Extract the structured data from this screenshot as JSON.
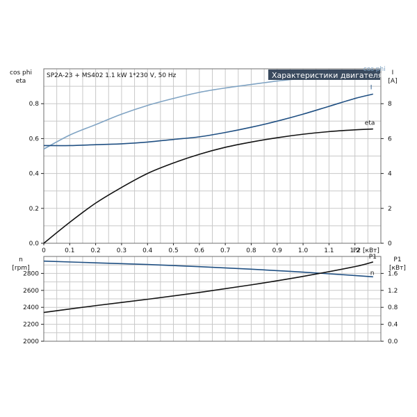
{
  "header": {
    "model_label": "SP2A-23 + MS402   1.1 kW   1*230 V, 50 Hz",
    "title": "Характеристики двигателя"
  },
  "colors": {
    "cos_phi": "#7fa3c3",
    "current": "#1f4f82",
    "eta": "#111111",
    "speed": "#1f4f82",
    "power": "#111111",
    "title_bg": "#3a4a5e"
  },
  "chart_data": [
    {
      "type": "line",
      "xlabel": "P2 [кВт]",
      "xlim": [
        0,
        1.3
      ],
      "x_ticks": [
        "0",
        "0.1",
        "0.2",
        "0.3",
        "0.4",
        "0.5",
        "0.6",
        "0.7",
        "0.8",
        "0.9",
        "1.0",
        "1.1",
        "1.2"
      ],
      "ylabel_left": [
        "cos phi",
        "eta"
      ],
      "ylim_left": [
        0,
        1.0
      ],
      "y_ticks_left": [
        "0.0",
        "0.2",
        "0.4",
        "0.6",
        "0.8"
      ],
      "ylabel_right": [
        "I",
        "[A]"
      ],
      "ylim_right": [
        0,
        10
      ],
      "y_ticks_right": [
        "0",
        "2",
        "4",
        "6",
        "8"
      ],
      "grid": true,
      "series": [
        {
          "name": "cos phi",
          "axis": "left",
          "x": [
            0,
            0.1,
            0.2,
            0.3,
            0.4,
            0.5,
            0.6,
            0.7,
            0.8,
            0.9,
            1.0,
            1.1,
            1.2,
            1.27
          ],
          "y": [
            0.54,
            0.62,
            0.68,
            0.74,
            0.79,
            0.83,
            0.865,
            0.89,
            0.91,
            0.93,
            0.945,
            0.96,
            0.968,
            0.972
          ]
        },
        {
          "name": "I",
          "axis": "right",
          "x": [
            0,
            0.1,
            0.2,
            0.3,
            0.4,
            0.5,
            0.6,
            0.7,
            0.8,
            0.9,
            1.0,
            1.1,
            1.2,
            1.27
          ],
          "y": [
            5.6,
            5.6,
            5.65,
            5.7,
            5.8,
            5.95,
            6.1,
            6.35,
            6.65,
            7.0,
            7.4,
            7.85,
            8.3,
            8.55
          ]
        },
        {
          "name": "eta",
          "axis": "left",
          "x": [
            0,
            0.1,
            0.2,
            0.3,
            0.4,
            0.5,
            0.6,
            0.7,
            0.8,
            0.9,
            1.0,
            1.1,
            1.2,
            1.27
          ],
          "y": [
            0.0,
            0.12,
            0.23,
            0.32,
            0.4,
            0.46,
            0.51,
            0.55,
            0.58,
            0.605,
            0.625,
            0.64,
            0.65,
            0.655
          ]
        }
      ]
    },
    {
      "type": "line",
      "xlim": [
        0,
        1.3
      ],
      "ylabel_left": [
        "n",
        "[rpm]"
      ],
      "ylim_left": [
        2000,
        3000
      ],
      "y_ticks_left": [
        "2000",
        "2200",
        "2400",
        "2600",
        "2800"
      ],
      "ylabel_right": [
        "P1",
        "[кВт]"
      ],
      "ylim_right": [
        0,
        2.0
      ],
      "y_ticks_right": [
        "0.0",
        "0.4",
        "0.8",
        "1.2",
        "1.6"
      ],
      "grid": true,
      "series": [
        {
          "name": "n",
          "axis": "left",
          "x": [
            0,
            0.2,
            0.4,
            0.6,
            0.8,
            1.0,
            1.2,
            1.27
          ],
          "y": [
            2945,
            2925,
            2905,
            2880,
            2850,
            2815,
            2775,
            2760
          ]
        },
        {
          "name": "P1",
          "axis": "right",
          "x": [
            0,
            0.2,
            0.4,
            0.6,
            0.8,
            1.0,
            1.2,
            1.27
          ],
          "y": [
            0.68,
            0.84,
            0.99,
            1.15,
            1.33,
            1.53,
            1.76,
            1.87
          ]
        }
      ]
    }
  ]
}
